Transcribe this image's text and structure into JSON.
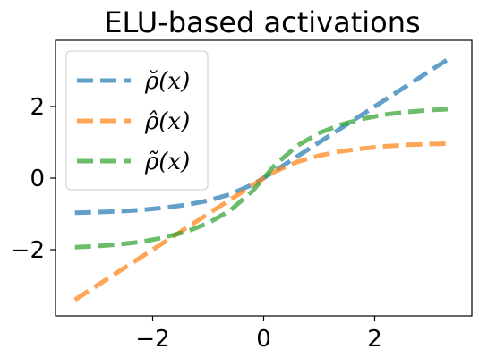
{
  "chart_data": {
    "type": "line",
    "title": "ELU-based activations",
    "xlabel": "",
    "ylabel": "",
    "xlim": [
      -3.75,
      3.75
    ],
    "ylim": [
      -3.85,
      3.85
    ],
    "xticks": [
      -2,
      0,
      2
    ],
    "xtick_labels": [
      "−2",
      "0",
      "2"
    ],
    "yticks": [
      -2,
      0,
      2
    ],
    "ytick_labels": [
      "−2",
      "0",
      "2"
    ],
    "grid": false,
    "legend_position": "top-left",
    "series": [
      {
        "name": "ρ̆(x)",
        "color": "#1f77b4",
        "linestyle": "dashed",
        "x": [
          -3.4,
          -3.0,
          -2.6,
          -2.2,
          -1.8,
          -1.4,
          -1.0,
          -0.6,
          -0.2,
          0.0,
          0.2,
          0.6,
          1.0,
          1.4,
          1.8,
          2.2,
          2.6,
          3.0,
          3.4
        ],
        "y": [
          -0.97,
          -0.95,
          -0.93,
          -0.89,
          -0.83,
          -0.75,
          -0.63,
          -0.45,
          -0.18,
          0.0,
          0.2,
          0.6,
          1.0,
          1.4,
          1.8,
          2.2,
          2.6,
          3.0,
          3.4
        ]
      },
      {
        "name": "ρ̂(x)",
        "color": "#ff7f0e",
        "linestyle": "dashed",
        "x": [
          -3.4,
          -3.0,
          -2.6,
          -2.2,
          -1.8,
          -1.4,
          -1.0,
          -0.6,
          -0.2,
          0.0,
          0.2,
          0.6,
          1.0,
          1.4,
          1.8,
          2.2,
          2.6,
          3.0,
          3.4
        ],
        "y": [
          -3.4,
          -3.0,
          -2.6,
          -2.2,
          -1.8,
          -1.4,
          -1.0,
          -0.6,
          -0.2,
          0.0,
          0.18,
          0.45,
          0.63,
          0.75,
          0.83,
          0.89,
          0.93,
          0.95,
          0.97
        ]
      },
      {
        "name": "ρ̃(x)",
        "color": "#2ca02c",
        "linestyle": "dashed",
        "x": [
          -3.4,
          -3.0,
          -2.6,
          -2.2,
          -1.8,
          -1.4,
          -1.0,
          -0.6,
          -0.2,
          0.0,
          0.2,
          0.6,
          1.0,
          1.4,
          1.8,
          2.2,
          2.6,
          3.0,
          3.4
        ],
        "y": [
          -1.93,
          -1.9,
          -1.85,
          -1.78,
          -1.66,
          -1.5,
          -1.26,
          -0.9,
          -0.36,
          0.0,
          0.36,
          0.9,
          1.26,
          1.5,
          1.66,
          1.78,
          1.85,
          1.9,
          1.93
        ]
      }
    ]
  }
}
